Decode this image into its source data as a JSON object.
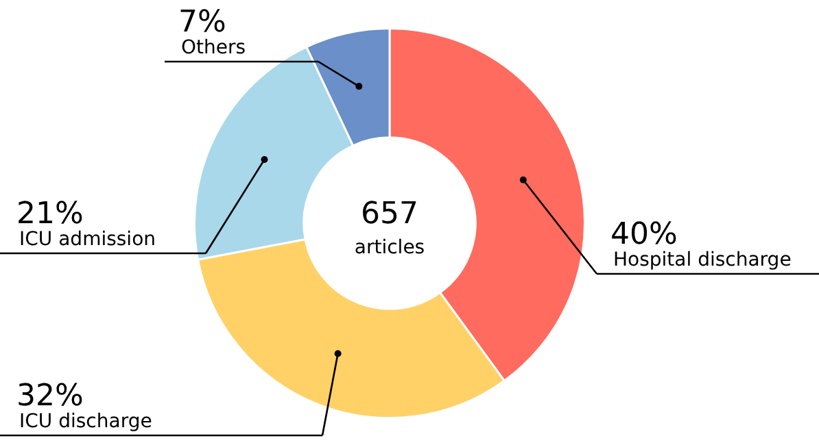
{
  "chart_data": {
    "type": "donut",
    "categories": [
      "Hospital discharge",
      "ICU discharge",
      "ICU admission",
      "Others"
    ],
    "values": [
      40,
      32,
      21,
      7
    ],
    "colors": [
      "#ff6b5e",
      "#ffd166",
      "#a8d8ea",
      "#6a8fc9"
    ],
    "value_labels": [
      "40%",
      "32%",
      "21%",
      "7%"
    ],
    "annotations": [
      "657",
      "articles"
    ],
    "legend": false
  }
}
